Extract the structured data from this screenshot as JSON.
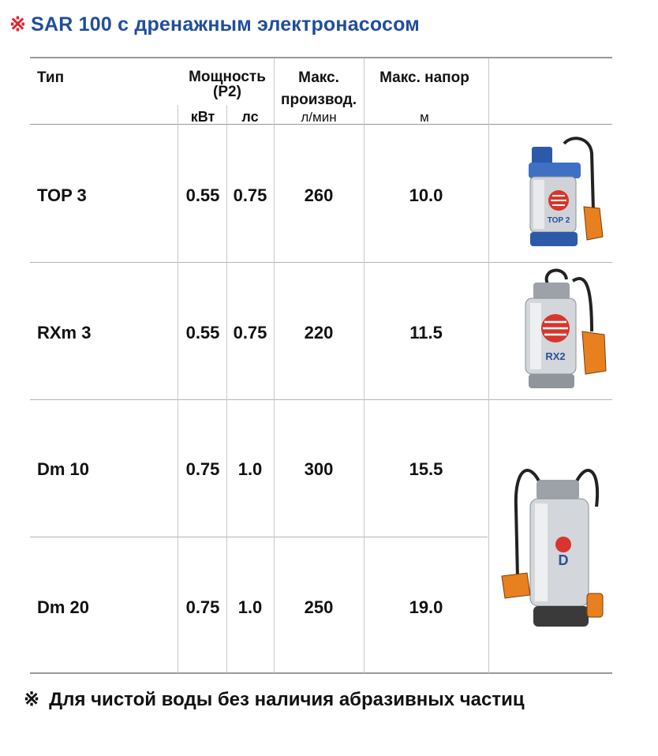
{
  "title": {
    "mark": "※",
    "text": "SAR 100 с дренажным электронасосом"
  },
  "table": {
    "headers": {
      "type": "Тип",
      "power_line1": "Мощность",
      "power_line2": "(P2)",
      "power_kw": "кВт",
      "power_hp": "лс",
      "flow_line1": "Макс.",
      "flow_line2": "производ.",
      "flow_unit": "л/мин",
      "head": "Макс. напор",
      "head_unit": "м"
    },
    "rows": [
      {
        "type": "TOP 3",
        "kw": "0.55",
        "hp": "0.75",
        "flow": "260",
        "head": "10.0"
      },
      {
        "type": "RXm 3",
        "kw": "0.55",
        "hp": "0.75",
        "flow": "220",
        "head": "11.5"
      },
      {
        "type": "Dm 10",
        "kw": "0.75",
        "hp": "1.0",
        "flow": "300",
        "head": "15.5"
      },
      {
        "type": "Dm 20",
        "kw": "0.75",
        "hp": "1.0",
        "flow": "250",
        "head": "19.0"
      }
    ],
    "images": {
      "top3_label": "TOP 2",
      "rx_label": "RX2",
      "d_label": "D"
    }
  },
  "footnote": {
    "mark": "※",
    "text": "Для чистой воды без наличия абразивных частиц"
  }
}
